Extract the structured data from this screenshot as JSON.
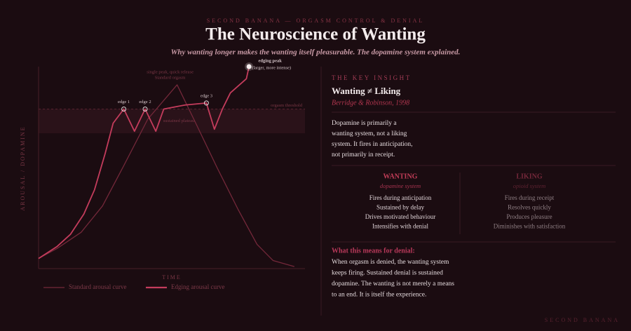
{
  "header": {
    "kicker": "SECOND BANANA — ORGASM CONTROL & DENIAL",
    "title": "The Neuroscience of Wanting",
    "subtitle": "Why wanting longer makes the wanting itself pleasurable. The dopamine system explained."
  },
  "chart_data": {
    "type": "line",
    "y_label": "AROUSAL / DOPAMINE",
    "x_label": "TIME",
    "xlim": [
      0,
      100
    ],
    "ylim": [
      0,
      100
    ],
    "threshold": 79,
    "threshold_label": "orgasm threshold",
    "plateau": [
      67,
      79
    ],
    "plateau_label": "sustained plateau",
    "series": [
      {
        "name": "Standard arousal curve",
        "color": "#74283a",
        "x": [
          0,
          7,
          16,
          24,
          32,
          41,
          52,
          59,
          67,
          75,
          82,
          88,
          96
        ],
        "values": [
          5,
          10,
          18,
          31,
          51,
          74,
          91,
          72,
          50,
          29,
          12,
          4,
          1
        ]
      },
      {
        "name": "Edging arousal curve",
        "color": "#c43c5c",
        "x": [
          0,
          7,
          12,
          17,
          21,
          25,
          28,
          32,
          36,
          40,
          44,
          47,
          55,
          63,
          66,
          69,
          72,
          78,
          79
        ],
        "values": [
          5,
          11,
          17,
          27,
          39,
          57,
          72,
          79,
          68,
          79,
          68,
          79,
          81,
          82,
          69,
          79,
          87,
          94,
          100
        ]
      }
    ],
    "annotations": {
      "edge1": "edge 1",
      "edge2": "edge 2",
      "edge3": "edge 3",
      "peak": "edging peak",
      "peak_note": "(larger, more intense)",
      "standard_1": "single peak, quick release",
      "standard_2": "Standard orgasm"
    }
  },
  "insight": {
    "section": "THE KEY INSIGHT",
    "heading": "Wanting ≠ Liking",
    "citation": "Berridge & Robinson, 1998",
    "paragraph": [
      "Dopamine is primarily a",
      "wanting system, not a liking",
      "system. It fires in anticipation,",
      "not primarily in receipt."
    ]
  },
  "columns": [
    {
      "title": "WANTING",
      "subtitle": "dopamine system",
      "items": [
        "Fires during anticipation",
        "Sustained by delay",
        "Drives motivated behaviour",
        "Intensifies with denial"
      ]
    },
    {
      "title": "LIKING",
      "subtitle": "opioid system",
      "items": [
        "Fires during receipt",
        "Resolves quickly",
        "Produces pleasure",
        "Diminishes with satisfaction"
      ]
    }
  ],
  "denial": {
    "heading": "What this means for denial:",
    "lines": [
      "When orgasm is denied, the wanting system",
      "keeps firing. Sustained denial is sustained",
      "dopamine. The wanting is not merely a means",
      "to an end. It is itself the experience."
    ]
  },
  "footer": "SECOND BANANA"
}
